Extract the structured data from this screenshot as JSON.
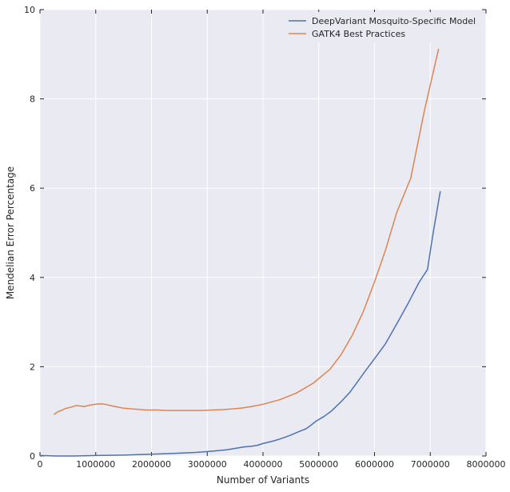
{
  "chart_data": {
    "type": "line",
    "xlabel": "Number of Variants",
    "ylabel": "Mendelian Error Percentage",
    "xlim": [
      0,
      8000000
    ],
    "ylim": [
      0,
      10
    ],
    "x_ticks": [
      0,
      1000000,
      2000000,
      3000000,
      4000000,
      5000000,
      6000000,
      7000000,
      8000000
    ],
    "x_tick_labels": [
      "0",
      "1000000",
      "2000000",
      "3000000",
      "4000000",
      "5000000",
      "6000000",
      "7000000",
      "8000000"
    ],
    "y_ticks": [
      0,
      2,
      4,
      6,
      8,
      10
    ],
    "y_tick_labels": [
      "0",
      "2",
      "4",
      "6",
      "8",
      "10"
    ],
    "grid": true,
    "legend_position": "top-right",
    "background": "#eaeaf2",
    "series": [
      {
        "name": "DeepVariant Mosquito-Specific Model",
        "color": "#4c72b0",
        "x": [
          0,
          300000,
          600000,
          1000000,
          1500000,
          2000000,
          2400000,
          2800000,
          3100000,
          3350000,
          3500000,
          3650000,
          3800000,
          3900000,
          4000000,
          4200000,
          4350000,
          4500000,
          4650000,
          4770000,
          4850000,
          4950000,
          5100000,
          5230000,
          5420000,
          5560000,
          5700000,
          5850000,
          6000000,
          6200000,
          6400000,
          6600000,
          6800000,
          6950000,
          7050000,
          7180000
        ],
        "y": [
          0.01,
          0.0,
          0.0,
          0.01,
          0.02,
          0.04,
          0.06,
          0.08,
          0.11,
          0.14,
          0.17,
          0.2,
          0.22,
          0.24,
          0.28,
          0.34,
          0.4,
          0.47,
          0.55,
          0.61,
          0.68,
          0.78,
          0.89,
          1.01,
          1.24,
          1.43,
          1.67,
          1.93,
          2.18,
          2.52,
          2.96,
          3.41,
          3.89,
          4.18,
          4.98,
          5.93
        ]
      },
      {
        "name": "GATK4 Best Practices",
        "color": "#dd8452",
        "x": [
          250000,
          320000,
          400000,
          470000,
          550000,
          650000,
          800000,
          900000,
          1000000,
          1100000,
          1200000,
          1300000,
          1500000,
          1700000,
          1900000,
          2100000,
          2300000,
          2500000,
          2700000,
          2900000,
          3100000,
          3300000,
          3600000,
          3800000,
          4000000,
          4300000,
          4600000,
          4900000,
          5200000,
          5400000,
          5600000,
          5800000,
          6000000,
          6200000,
          6400000,
          6650000,
          6900000,
          7150000
        ],
        "y": [
          0.93,
          0.99,
          1.03,
          1.07,
          1.09,
          1.13,
          1.11,
          1.14,
          1.16,
          1.17,
          1.15,
          1.12,
          1.07,
          1.05,
          1.03,
          1.03,
          1.02,
          1.02,
          1.02,
          1.02,
          1.03,
          1.04,
          1.07,
          1.11,
          1.16,
          1.26,
          1.41,
          1.63,
          1.94,
          2.27,
          2.7,
          3.24,
          3.9,
          4.62,
          5.46,
          6.22,
          7.77,
          9.12
        ]
      }
    ]
  }
}
